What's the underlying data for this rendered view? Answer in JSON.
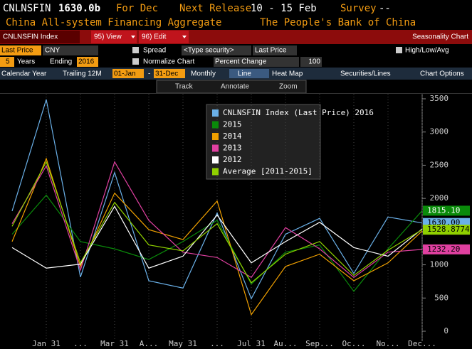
{
  "header": {
    "ticker": "CNLNSFIN",
    "value": "1630.0b",
    "period": "For Dec",
    "release_label": "Next Release",
    "release": "10 - 15 Feb",
    "survey_label": "Survey",
    "survey": "--",
    "name": "China All-system Financing Aggregate",
    "source": "The People's Bank of China"
  },
  "toolbar": {
    "security": "CNLNSFIN Index",
    "view": "95) View",
    "edit": "96) Edit",
    "title": "Seasonality Chart"
  },
  "settings": {
    "field": "Last Price",
    "currency": "CNY",
    "spread": "Spread",
    "type_security": "<Type security>",
    "field2": "Last Price",
    "high_low": "High/Low/Avg",
    "years": "5",
    "years_label": "Years",
    "ending_label": "Ending",
    "ending": "2016",
    "normalize": "Normalize Chart",
    "percent_change": "Percent Change",
    "base": "100"
  },
  "tabs": [
    "Calendar Year",
    "Trailing 12M",
    "01-Jan",
    "-",
    "31-Dec",
    "Monthly",
    "Line",
    "Heat Map",
    "Securities/Lines",
    "Chart Options"
  ],
  "tools": [
    "Track",
    "Annotate",
    "Zoom"
  ],
  "chart_data": {
    "type": "line",
    "categories": [
      null,
      "Jan 31",
      "...",
      "Mar 31",
      "A...",
      "May 31",
      "...",
      "Jul 31",
      "Au...",
      "Sep...",
      "Oc...",
      "No...",
      "Dec..."
    ],
    "series": [
      {
        "name": "CNLNSFIN Index (Last Price) 2016",
        "color": "#6ab0e8",
        "values": [
          1810,
          3490,
          815,
          2390,
          760,
          650,
          1780,
          490,
          1460,
          1700,
          870,
          1720,
          1630
        ],
        "value_labels": [
          null,
          null,
          null,
          null,
          null,
          null,
          null,
          null,
          null,
          null,
          null,
          null,
          "1630.00"
        ]
      },
      {
        "name": "2015",
        "color": "#0a8a0a",
        "values": [
          1460,
          2050,
          1350,
          1240,
          1080,
          1350,
          1670,
          710,
          1190,
          1300,
          600,
          1240,
          1815.1
        ],
        "value_labels": [
          null,
          null,
          null,
          null,
          null,
          null,
          null,
          null,
          null,
          null,
          null,
          null,
          "1815.10"
        ]
      },
      {
        "name": "2014",
        "color": "#f0a000",
        "values": [
          1350,
          2600,
          975,
          2080,
          1530,
          1380,
          1960,
          250,
          975,
          1160,
          760,
          1030,
          1510
        ]
      },
      {
        "name": "2013",
        "color": "#e040a0",
        "values": [
          1620,
          2490,
          920,
          2550,
          1670,
          1190,
          1110,
          810,
          1560,
          1240,
          810,
          1190,
          1232.2
        ],
        "value_labels": [
          null,
          null,
          null,
          null,
          null,
          null,
          null,
          null,
          null,
          null,
          null,
          null,
          "1232.20"
        ]
      },
      {
        "name": "2012",
        "color": "#ffffff",
        "values": [
          1260,
          950,
          1010,
          1880,
          950,
          1130,
          1750,
          1030,
          1350,
          1640,
          1260,
          1130,
          1540
        ]
      },
      {
        "name": "Average [2011-2015]",
        "color": "#90d000",
        "values": [
          1580,
          2550,
          1030,
          1940,
          1300,
          1210,
          1620,
          730,
          1160,
          1350,
          840,
          1220,
          1528.8774
        ],
        "value_labels": [
          null,
          null,
          null,
          null,
          null,
          null,
          null,
          null,
          null,
          null,
          null,
          null,
          "1528.8774"
        ]
      }
    ],
    "ylim": [
      -150,
      3575
    ],
    "yticks": [
      0,
      500,
      1000,
      1500,
      2000,
      2500,
      3000,
      3500
    ],
    "grid": "x"
  }
}
